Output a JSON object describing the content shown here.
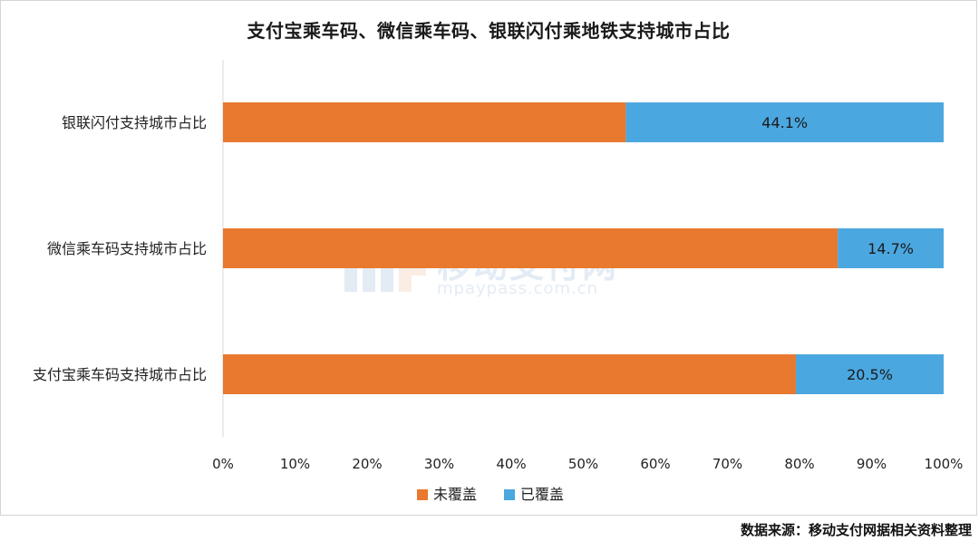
{
  "title": "支付宝乘车码、微信乘车码、银联闪付乘地铁支持城市占比",
  "source": "数据来源：移动支付网据相关资料整理",
  "watermark": {
    "brand": "移动支付网",
    "url": "mpaypass.com.cn"
  },
  "colors": {
    "uncovered": "#E8792E",
    "covered": "#4BA7E0"
  },
  "chart_data": {
    "type": "bar",
    "orientation": "horizontal",
    "stacked": true,
    "categories": [
      "银联闪付支持城市占比",
      "微信乘车码支持城市占比",
      "支付宝乘车码支持城市占比"
    ],
    "series": [
      {
        "name": "未覆盖",
        "values": [
          55.9,
          85.3,
          79.5
        ]
      },
      {
        "name": "已覆盖",
        "values": [
          44.1,
          14.7,
          20.5
        ]
      }
    ],
    "data_labels": [
      "44.1%",
      "14.7%",
      "20.5%"
    ],
    "xlim": [
      0,
      100
    ],
    "x_ticks": [
      "0%",
      "10%",
      "20%",
      "30%",
      "40%",
      "50%",
      "60%",
      "70%",
      "80%",
      "90%",
      "100%"
    ],
    "legend_position": "bottom",
    "grid": false
  }
}
